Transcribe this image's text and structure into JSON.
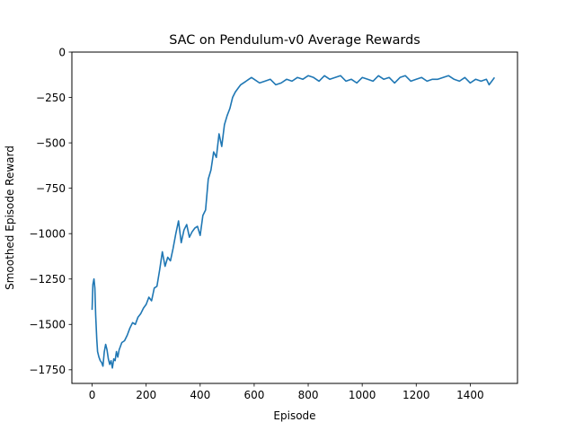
{
  "chart_data": {
    "type": "line",
    "title": "SAC on Pendulum-v0 Average Rewards",
    "xlabel": "Episode",
    "ylabel": "Smoothed Episode Reward",
    "xlim": [
      -75,
      1575
    ],
    "ylim": [
      -1825,
      0
    ],
    "xticks": [
      0,
      200,
      400,
      600,
      800,
      1000,
      1200,
      1400
    ],
    "yticks": [
      0,
      -250,
      -500,
      -750,
      -1000,
      -1250,
      -1500,
      -1750
    ],
    "xtick_labels": [
      "0",
      "200",
      "400",
      "600",
      "800",
      "1000",
      "1200",
      "1400"
    ],
    "ytick_labels": [
      "0",
      "−250",
      "−500",
      "−750",
      "−1000",
      "−1250",
      "−1500",
      "−1750"
    ],
    "grid": false,
    "legend": "none",
    "series": [
      {
        "color": "#1f77b4",
        "x": [
          0,
          3,
          7,
          10,
          13,
          17,
          20,
          25,
          30,
          35,
          40,
          45,
          50,
          55,
          60,
          65,
          70,
          75,
          80,
          85,
          90,
          95,
          100,
          110,
          120,
          130,
          140,
          150,
          160,
          170,
          180,
          190,
          200,
          210,
          220,
          230,
          240,
          250,
          260,
          270,
          280,
          290,
          300,
          310,
          320,
          330,
          340,
          350,
          360,
          370,
          380,
          390,
          400,
          410,
          420,
          430,
          440,
          450,
          460,
          470,
          480,
          490,
          500,
          510,
          520,
          530,
          540,
          550,
          560,
          570,
          580,
          590,
          600,
          620,
          640,
          660,
          680,
          700,
          720,
          740,
          760,
          780,
          800,
          820,
          840,
          860,
          880,
          900,
          920,
          940,
          960,
          980,
          1000,
          1020,
          1040,
          1060,
          1080,
          1100,
          1120,
          1140,
          1160,
          1180,
          1200,
          1220,
          1240,
          1260,
          1280,
          1300,
          1320,
          1340,
          1360,
          1380,
          1400,
          1420,
          1440,
          1460,
          1470,
          1480,
          1490
        ],
        "y": [
          -1420,
          -1280,
          -1250,
          -1300,
          -1450,
          -1580,
          -1650,
          -1680,
          -1700,
          -1710,
          -1730,
          -1650,
          -1610,
          -1640,
          -1690,
          -1720,
          -1700,
          -1740,
          -1690,
          -1700,
          -1650,
          -1680,
          -1640,
          -1600,
          -1590,
          -1560,
          -1520,
          -1490,
          -1500,
          -1460,
          -1440,
          -1410,
          -1390,
          -1350,
          -1370,
          -1300,
          -1290,
          -1200,
          -1100,
          -1180,
          -1130,
          -1150,
          -1080,
          -1000,
          -930,
          -1050,
          -980,
          -950,
          -1020,
          -990,
          -970,
          -960,
          -1010,
          -900,
          -870,
          -700,
          -650,
          -550,
          -580,
          -450,
          -520,
          -400,
          -350,
          -310,
          -250,
          -220,
          -200,
          -180,
          -170,
          -160,
          -150,
          -140,
          -150,
          -170,
          -160,
          -150,
          -180,
          -170,
          -150,
          -160,
          -140,
          -150,
          -130,
          -140,
          -160,
          -130,
          -150,
          -140,
          -130,
          -160,
          -150,
          -170,
          -140,
          -150,
          -160,
          -130,
          -150,
          -140,
          -170,
          -140,
          -130,
          -160,
          -150,
          -140,
          -160,
          -150,
          -150,
          -140,
          -130,
          -150,
          -160,
          -140,
          -170,
          -150,
          -160,
          -150,
          -180,
          -160,
          -140
        ]
      }
    ]
  }
}
